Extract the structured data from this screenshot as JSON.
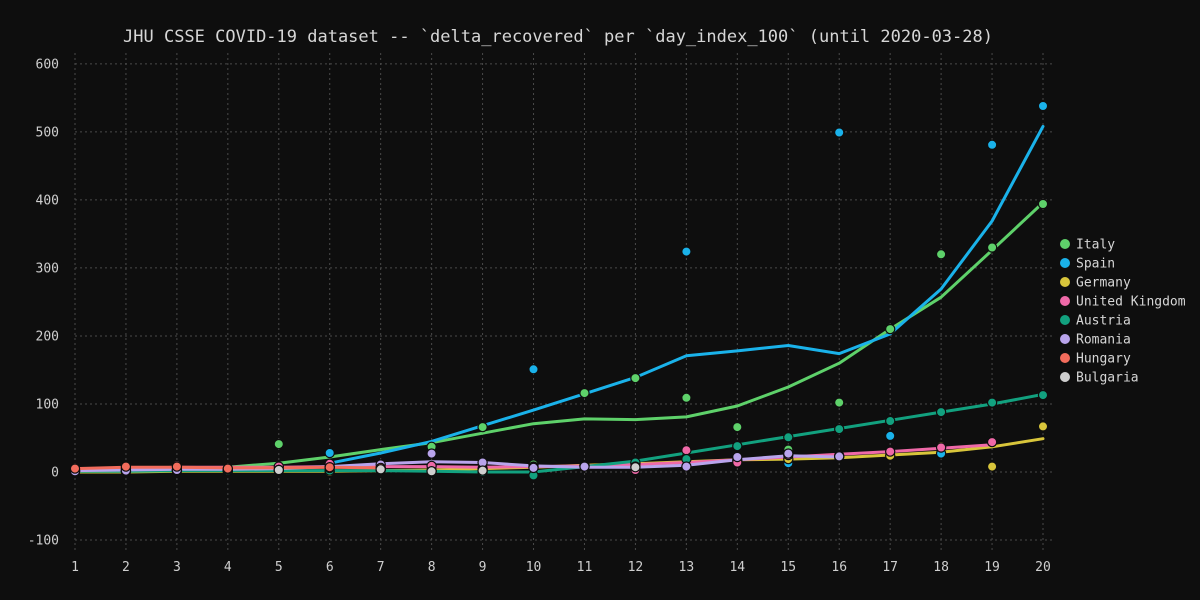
{
  "chart_data": {
    "type": "scatter",
    "title": "JHU CSSE COVID-19 dataset -- `delta_recovered` per `day_index_100` (until 2020-03-28)",
    "xlabel": "",
    "ylabel": "",
    "xlim": [
      1,
      20
    ],
    "ylim": [
      -110,
      620
    ],
    "x_ticks": [
      1,
      2,
      3,
      4,
      5,
      6,
      7,
      8,
      9,
      10,
      11,
      12,
      13,
      14,
      15,
      16,
      17,
      18,
      19,
      20
    ],
    "y_ticks": [
      -100,
      0,
      100,
      200,
      300,
      400,
      500,
      600
    ],
    "grid": true,
    "legend_position": "right",
    "series": [
      {
        "name": "Italy",
        "color": "#5ed16a",
        "points": [
          [
            1,
            2
          ],
          [
            2,
            1
          ],
          [
            3,
            3
          ],
          [
            4,
            2
          ],
          [
            5,
            41
          ],
          [
            6,
            8
          ],
          [
            7,
            4
          ],
          [
            8,
            37
          ],
          [
            9,
            66
          ],
          [
            10,
            11
          ],
          [
            11,
            116
          ],
          [
            12,
            138
          ],
          [
            13,
            109
          ],
          [
            14,
            66
          ],
          [
            15,
            33
          ],
          [
            16,
            102
          ],
          [
            17,
            210
          ],
          [
            18,
            320
          ],
          [
            19,
            330
          ],
          [
            20,
            394
          ]
        ],
        "trend": [
          [
            1,
            1
          ],
          [
            2,
            2
          ],
          [
            3,
            4
          ],
          [
            4,
            7
          ],
          [
            5,
            13
          ],
          [
            6,
            22
          ],
          [
            7,
            33
          ],
          [
            8,
            43
          ],
          [
            9,
            57
          ],
          [
            10,
            71
          ],
          [
            11,
            78
          ],
          [
            12,
            77
          ],
          [
            13,
            81
          ],
          [
            14,
            97
          ],
          [
            15,
            125
          ],
          [
            16,
            160
          ],
          [
            17,
            210
          ],
          [
            18,
            257
          ],
          [
            19,
            326
          ],
          [
            20,
            396
          ]
        ]
      },
      {
        "name": "Spain",
        "color": "#1ab2ea",
        "points": [
          [
            6,
            28
          ],
          [
            7,
            4
          ],
          [
            10,
            151
          ],
          [
            13,
            324
          ],
          [
            15,
            13
          ],
          [
            16,
            499
          ],
          [
            17,
            53
          ],
          [
            18,
            27
          ],
          [
            19,
            481
          ],
          [
            20,
            538
          ]
        ],
        "trend": [
          [
            6,
            13
          ],
          [
            7,
            28
          ],
          [
            8,
            45
          ],
          [
            9,
            68
          ],
          [
            10,
            91
          ],
          [
            11,
            115
          ],
          [
            12,
            139
          ],
          [
            13,
            171
          ],
          [
            14,
            178
          ],
          [
            15,
            186
          ],
          [
            16,
            174
          ],
          [
            17,
            203
          ],
          [
            18,
            269
          ],
          [
            19,
            369
          ],
          [
            20,
            508
          ]
        ]
      },
      {
        "name": "Germany",
        "color": "#d8c53b",
        "points": [
          [
            1,
            0
          ],
          [
            2,
            1
          ],
          [
            3,
            2
          ],
          [
            4,
            1
          ],
          [
            5,
            2
          ],
          [
            6,
            0
          ],
          [
            7,
            3
          ],
          [
            8,
            2
          ],
          [
            9,
            5
          ],
          [
            10,
            8
          ],
          [
            11,
            10
          ],
          [
            12,
            12
          ],
          [
            13,
            21
          ],
          [
            14,
            17
          ],
          [
            15,
            19
          ],
          [
            16,
            22
          ],
          [
            17,
            24
          ],
          [
            18,
            38
          ],
          [
            19,
            8
          ],
          [
            20,
            67
          ]
        ],
        "trend": [
          [
            1,
            0
          ],
          [
            2,
            0
          ],
          [
            3,
            1
          ],
          [
            4,
            1
          ],
          [
            5,
            1
          ],
          [
            6,
            1
          ],
          [
            7,
            2
          ],
          [
            8,
            3
          ],
          [
            9,
            5
          ],
          [
            10,
            7
          ],
          [
            11,
            10
          ],
          [
            12,
            12
          ],
          [
            13,
            15
          ],
          [
            14,
            18
          ],
          [
            15,
            19
          ],
          [
            16,
            21
          ],
          [
            17,
            25
          ],
          [
            18,
            29
          ],
          [
            19,
            37
          ],
          [
            20,
            49
          ]
        ]
      },
      {
        "name": "United Kingdom",
        "color": "#ef69a8",
        "points": [
          [
            1,
            3
          ],
          [
            2,
            5
          ],
          [
            3,
            10
          ],
          [
            4,
            2
          ],
          [
            5,
            8
          ],
          [
            6,
            12
          ],
          [
            7,
            5
          ],
          [
            8,
            9
          ],
          [
            9,
            3
          ],
          [
            10,
            7
          ],
          [
            11,
            10
          ],
          [
            12,
            3
          ],
          [
            13,
            32
          ],
          [
            14,
            14
          ],
          [
            15,
            25
          ],
          [
            16,
            24
          ],
          [
            17,
            30
          ],
          [
            18,
            36
          ],
          [
            19,
            44
          ]
        ],
        "trend": [
          [
            1,
            3
          ],
          [
            2,
            5
          ],
          [
            3,
            7
          ],
          [
            4,
            7
          ],
          [
            5,
            7
          ],
          [
            6,
            8
          ],
          [
            7,
            8
          ],
          [
            8,
            8
          ],
          [
            9,
            7
          ],
          [
            10,
            8
          ],
          [
            11,
            9
          ],
          [
            12,
            11
          ],
          [
            13,
            14
          ],
          [
            14,
            18
          ],
          [
            15,
            22
          ],
          [
            16,
            26
          ],
          [
            17,
            30
          ],
          [
            18,
            35
          ],
          [
            19,
            40
          ]
        ]
      },
      {
        "name": "Austria",
        "color": "#12a17f",
        "points": [
          [
            1,
            1
          ],
          [
            2,
            1
          ],
          [
            3,
            2
          ],
          [
            4,
            2
          ],
          [
            5,
            3
          ],
          [
            6,
            2
          ],
          [
            7,
            4
          ],
          [
            8,
            1
          ],
          [
            9,
            0
          ],
          [
            10,
            -5
          ],
          [
            11,
            9
          ],
          [
            12,
            14
          ],
          [
            13,
            19
          ],
          [
            14,
            38
          ],
          [
            15,
            51
          ],
          [
            16,
            63
          ],
          [
            17,
            75
          ],
          [
            18,
            88
          ],
          [
            19,
            102
          ],
          [
            20,
            113
          ]
        ],
        "trend": [
          [
            1,
            1
          ],
          [
            2,
            1
          ],
          [
            3,
            2
          ],
          [
            4,
            2
          ],
          [
            5,
            2
          ],
          [
            6,
            2
          ],
          [
            7,
            2
          ],
          [
            8,
            1
          ],
          [
            9,
            0
          ],
          [
            10,
            0
          ],
          [
            11,
            8
          ],
          [
            12,
            16
          ],
          [
            13,
            28
          ],
          [
            14,
            40
          ],
          [
            15,
            52
          ],
          [
            16,
            64
          ],
          [
            17,
            76
          ],
          [
            18,
            88
          ],
          [
            19,
            100
          ],
          [
            20,
            114
          ]
        ]
      },
      {
        "name": "Romania",
        "color": "#b9a4ec",
        "points": [
          [
            1,
            1
          ],
          [
            2,
            2
          ],
          [
            3,
            3
          ],
          [
            4,
            4
          ],
          [
            5,
            3
          ],
          [
            6,
            6
          ],
          [
            7,
            11
          ],
          [
            8,
            27
          ],
          [
            9,
            14
          ],
          [
            10,
            6
          ],
          [
            11,
            8
          ],
          [
            12,
            8
          ],
          [
            13,
            8
          ],
          [
            14,
            22
          ],
          [
            15,
            27
          ],
          [
            16,
            23
          ]
        ],
        "trend": [
          [
            1,
            2
          ],
          [
            2,
            3
          ],
          [
            3,
            4
          ],
          [
            4,
            4
          ],
          [
            5,
            5
          ],
          [
            6,
            8
          ],
          [
            7,
            12
          ],
          [
            8,
            15
          ],
          [
            9,
            14
          ],
          [
            10,
            9
          ],
          [
            11,
            7
          ],
          [
            12,
            7
          ],
          [
            13,
            10
          ],
          [
            14,
            18
          ],
          [
            15,
            24
          ],
          [
            16,
            22
          ]
        ]
      },
      {
        "name": "Hungary",
        "color": "#f26c5c",
        "points": [
          [
            1,
            5
          ],
          [
            2,
            8
          ],
          [
            3,
            8
          ],
          [
            4,
            5
          ],
          [
            6,
            7
          ],
          [
            7,
            6
          ]
        ],
        "trend": [
          [
            1,
            5
          ],
          [
            2,
            7
          ],
          [
            3,
            7
          ],
          [
            4,
            6
          ],
          [
            5,
            6
          ],
          [
            6,
            7
          ],
          [
            7,
            6
          ]
        ]
      },
      {
        "name": "Bulgaria",
        "color": "#cfcfcf",
        "points": [
          [
            5,
            3
          ],
          [
            7,
            4
          ],
          [
            8,
            1
          ],
          [
            9,
            2
          ],
          [
            12,
            7
          ]
        ],
        "trend": []
      }
    ]
  }
}
